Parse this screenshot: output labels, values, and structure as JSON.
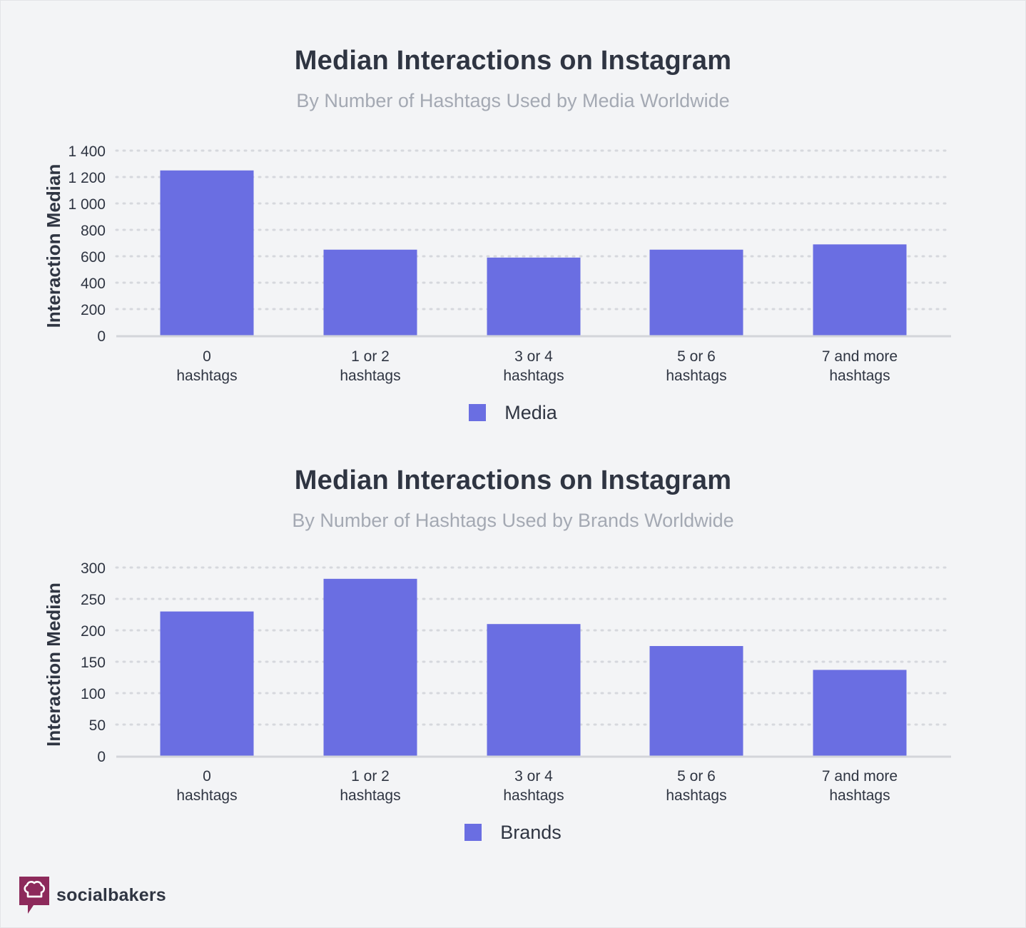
{
  "colors": {
    "bar": "#6a6ee2",
    "grid": "#d6d8dd",
    "axis": "#d3d5da",
    "text": "#2f3542",
    "subtitle": "#a4a9b3",
    "brand": "#8d2a5b"
  },
  "charts": [
    {
      "title": "Median Interactions on Instagram",
      "subtitle": "By Number of Hashtags Used by Media Worldwide",
      "ylabel": "Interaction Median",
      "legend_label": "Media"
    },
    {
      "title": "Median Interactions on Instagram",
      "subtitle": "By Number of Hashtags Used by Brands Worldwide",
      "ylabel": "Interaction Median",
      "legend_label": "Brands"
    }
  ],
  "chart_data": [
    {
      "type": "bar",
      "title": "Median Interactions on Instagram",
      "subtitle": "By Number of Hashtags Used by Media Worldwide",
      "xlabel": "",
      "ylabel": "Interaction Median",
      "categories": [
        [
          "0",
          "hashtags"
        ],
        [
          "1 or 2",
          "hashtags"
        ],
        [
          "3 or 4",
          "hashtags"
        ],
        [
          "5 or 6",
          "hashtags"
        ],
        [
          "7 and more",
          "hashtags"
        ]
      ],
      "series": [
        {
          "name": "Media",
          "values": [
            1250,
            650,
            590,
            650,
            690
          ]
        }
      ],
      "ylim": [
        0,
        1400
      ],
      "yticks": [
        0,
        200,
        400,
        600,
        800,
        1000,
        1200,
        1400
      ],
      "ytick_labels": [
        "0",
        "200",
        "400",
        "600",
        "800",
        "1 000",
        "1 200",
        "1 400"
      ],
      "grid": true,
      "legend": "bottom-center"
    },
    {
      "type": "bar",
      "title": "Median Interactions on Instagram",
      "subtitle": "By Number of Hashtags Used by Brands Worldwide",
      "xlabel": "",
      "ylabel": "Interaction Median",
      "categories": [
        [
          "0",
          "hashtags"
        ],
        [
          "1 or 2",
          "hashtags"
        ],
        [
          "3 or 4",
          "hashtags"
        ],
        [
          "5 or 6",
          "hashtags"
        ],
        [
          "7 and more",
          "hashtags"
        ]
      ],
      "series": [
        {
          "name": "Brands",
          "values": [
            230,
            282,
            210,
            175,
            137
          ]
        }
      ],
      "ylim": [
        0,
        300
      ],
      "yticks": [
        0,
        50,
        100,
        150,
        200,
        250,
        300
      ],
      "ytick_labels": [
        "0",
        "50",
        "100",
        "150",
        "200",
        "250",
        "300"
      ],
      "grid": true,
      "legend": "bottom-center"
    }
  ],
  "brand": {
    "name": "socialbakers",
    "logo_icon": "chef-hat-icon"
  }
}
